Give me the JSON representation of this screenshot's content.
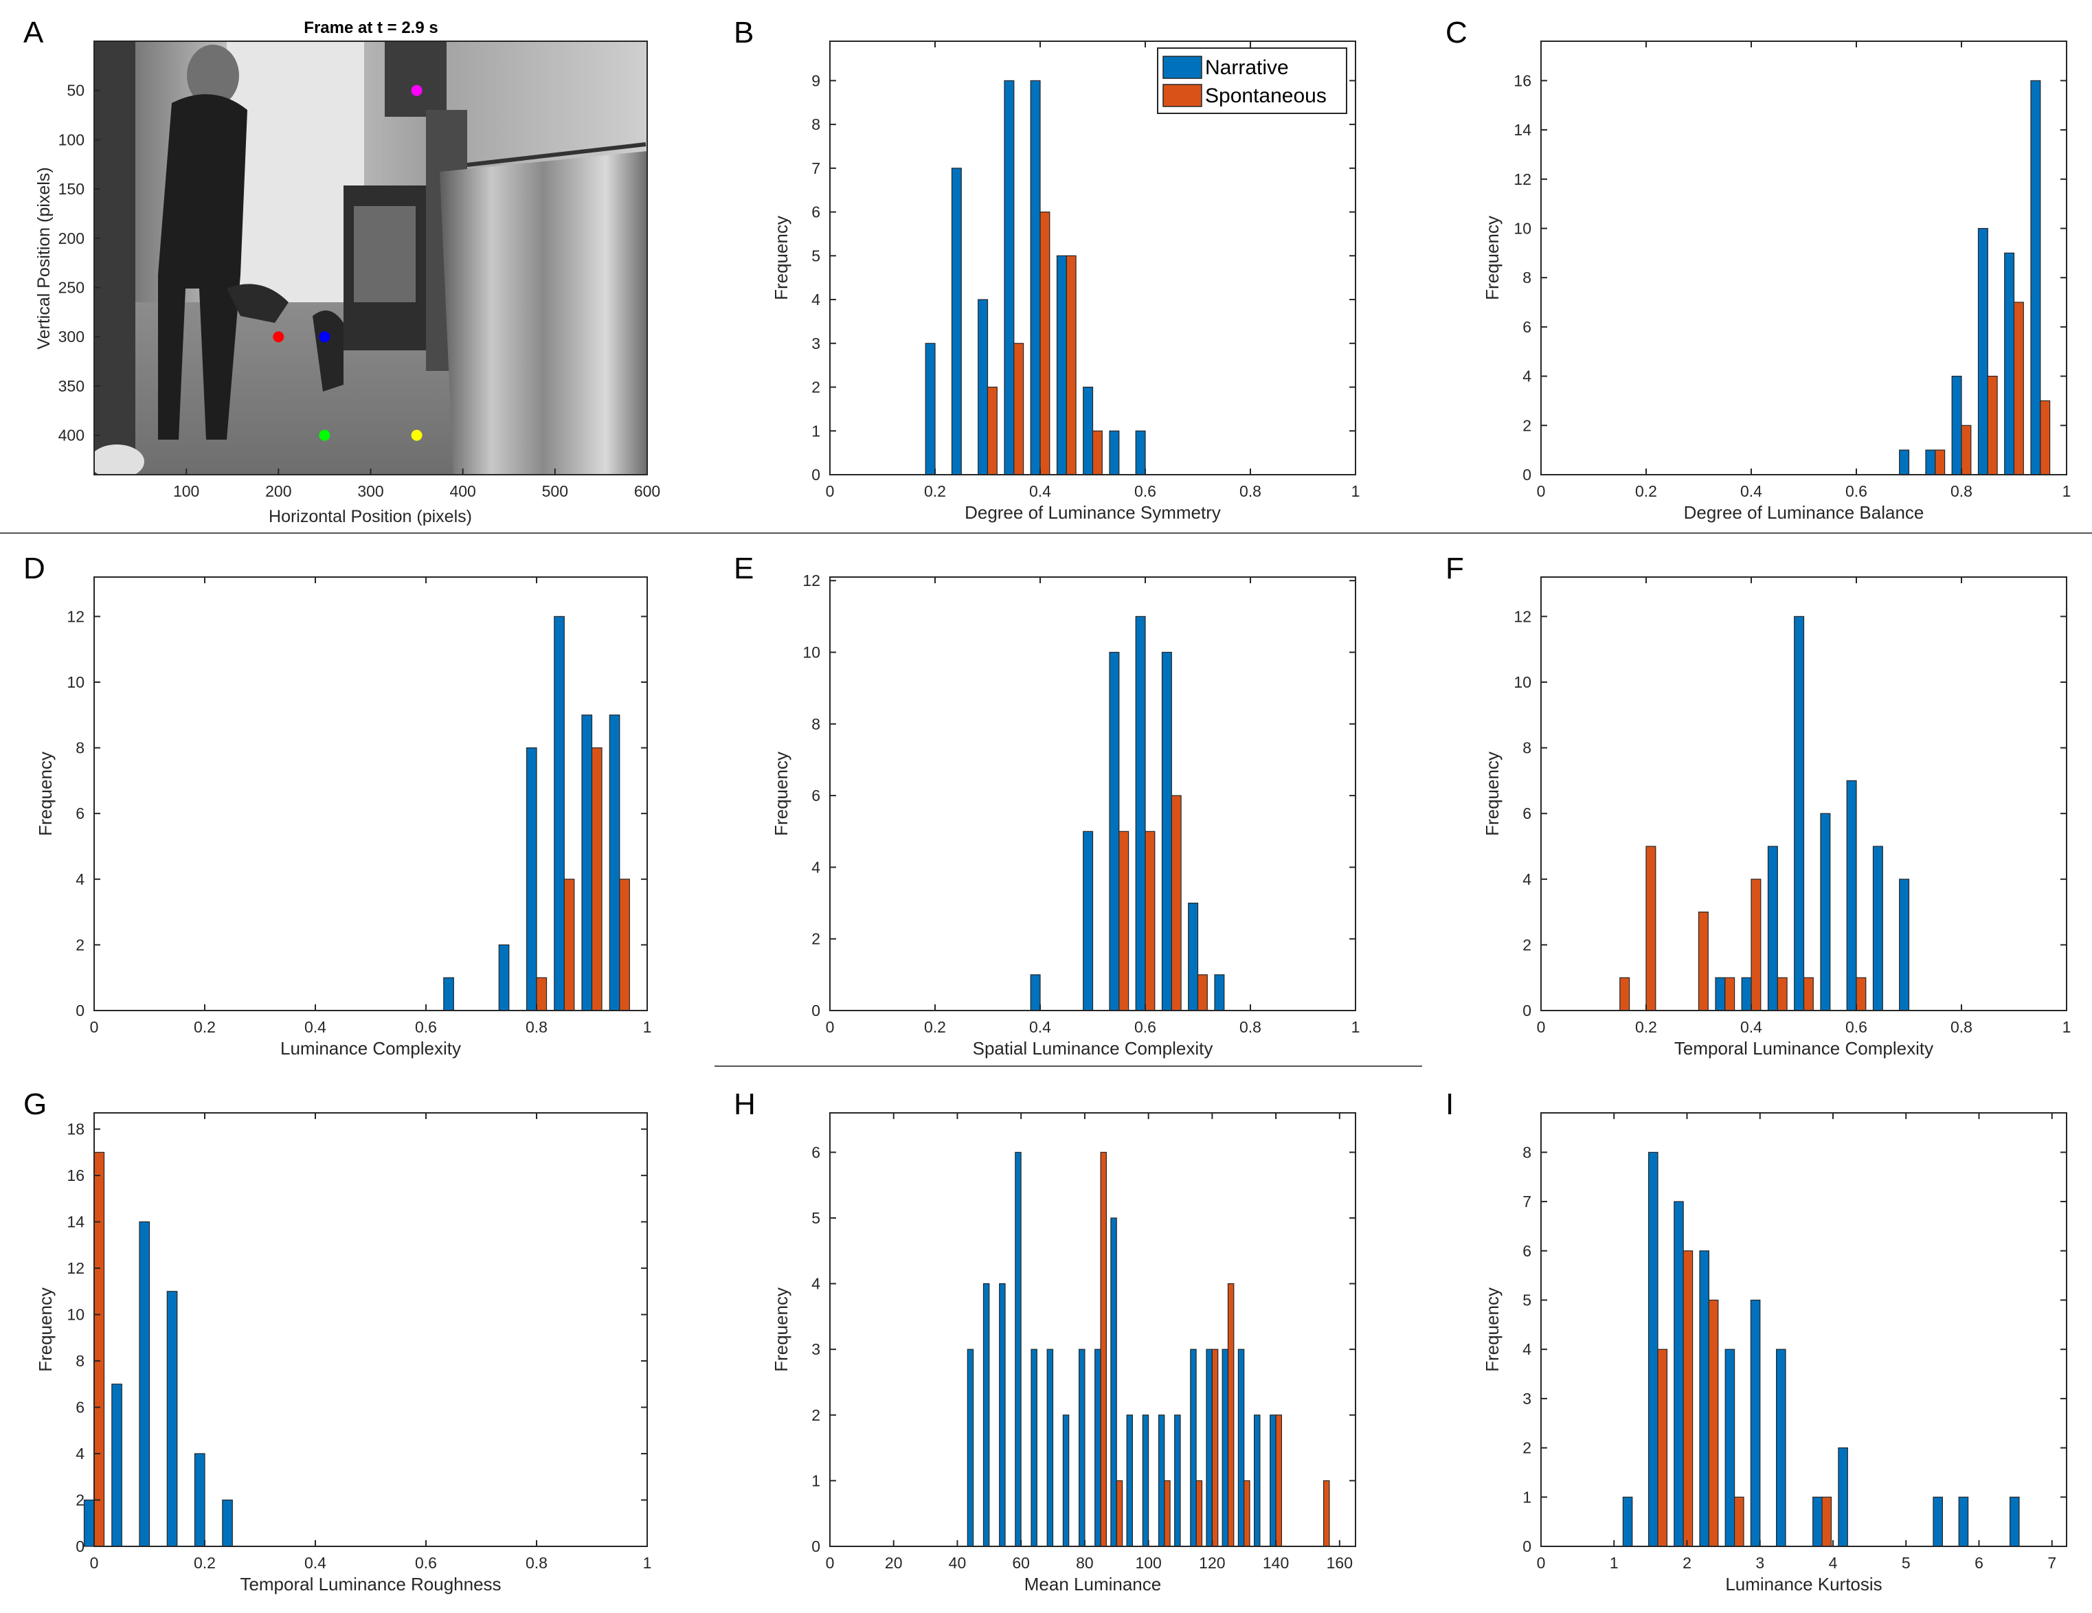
{
  "colors": {
    "narrative": "#0072BD",
    "spontaneous": "#D95319",
    "axis": "#262626"
  },
  "panels": [
    {
      "id": "A",
      "letter": "A"
    },
    {
      "id": "B",
      "letter": "B"
    },
    {
      "id": "C",
      "letter": "C"
    },
    {
      "id": "D",
      "letter": "D"
    },
    {
      "id": "E",
      "letter": "E"
    },
    {
      "id": "F",
      "letter": "F"
    },
    {
      "id": "G",
      "letter": "G"
    },
    {
      "id": "H",
      "letter": "H"
    },
    {
      "id": "I",
      "letter": "I"
    }
  ],
  "legend": {
    "series": [
      "Narrative",
      "Spontaneous"
    ]
  },
  "image_panel": {
    "title": "Frame at t = 2.9 s",
    "xlabel": "Horizontal Position (pixels)",
    "ylabel": "Vertical Position (pixels)",
    "xlim": [
      0,
      600
    ],
    "ylim": [
      0,
      440
    ],
    "xticks": [
      100,
      200,
      300,
      400,
      500,
      600
    ],
    "yticks": [
      50,
      100,
      150,
      200,
      250,
      300,
      350,
      400
    ],
    "markers": [
      {
        "name": "magenta",
        "color": "#ff00ff",
        "x": 350,
        "y": 50
      },
      {
        "name": "red",
        "color": "#ff0000",
        "x": 200,
        "y": 300
      },
      {
        "name": "blue",
        "color": "#0000ff",
        "x": 250,
        "y": 300
      },
      {
        "name": "green",
        "color": "#00ff00",
        "x": 250,
        "y": 400
      },
      {
        "name": "yellow",
        "color": "#ffff00",
        "x": 350,
        "y": 400
      }
    ]
  },
  "chart_data": [
    {
      "panel": "B",
      "type": "bar",
      "xlabel": "Degree of Luminance Symmetry",
      "ylabel": "Frequency",
      "xlim": [
        0,
        1
      ],
      "ylim": [
        0,
        9.9
      ],
      "xticks": [
        0,
        0.2,
        0.4,
        0.6,
        0.8,
        1
      ],
      "yticks": [
        0,
        1,
        2,
        3,
        4,
        5,
        6,
        7,
        8,
        9
      ],
      "bin_width": 0.05,
      "legend": true,
      "series": [
        {
          "name": "Narrative",
          "x": [
            0.2,
            0.25,
            0.3,
            0.35,
            0.4,
            0.45,
            0.5,
            0.55,
            0.6
          ],
          "values": [
            3,
            7,
            4,
            9,
            9,
            5,
            2,
            1,
            1
          ]
        },
        {
          "name": "Spontaneous",
          "x": [
            0.3,
            0.35,
            0.4,
            0.45,
            0.5
          ],
          "values": [
            2,
            3,
            6,
            5,
            1
          ]
        }
      ]
    },
    {
      "panel": "C",
      "type": "bar",
      "xlabel": "Degree of Luminance Balance",
      "ylabel": "Frequency",
      "xlim": [
        0,
        1
      ],
      "ylim": [
        0,
        17.6
      ],
      "xticks": [
        0,
        0.2,
        0.4,
        0.6,
        0.8,
        1
      ],
      "yticks": [
        0,
        2,
        4,
        6,
        8,
        10,
        12,
        14,
        16
      ],
      "bin_width": 0.05,
      "series": [
        {
          "name": "Narrative",
          "x": [
            0.7,
            0.75,
            0.8,
            0.85,
            0.9,
            0.95
          ],
          "values": [
            1,
            1,
            4,
            10,
            9,
            16
          ]
        },
        {
          "name": "Spontaneous",
          "x": [
            0.75,
            0.8,
            0.85,
            0.9,
            0.95
          ],
          "values": [
            1,
            2,
            4,
            7,
            3
          ]
        }
      ]
    },
    {
      "panel": "D",
      "type": "bar",
      "xlabel": "Luminance Complexity",
      "ylabel": "Frequency",
      "xlim": [
        0,
        1
      ],
      "ylim": [
        0,
        13.2
      ],
      "xticks": [
        0,
        0.2,
        0.4,
        0.6,
        0.8,
        1
      ],
      "yticks": [
        0,
        2,
        4,
        6,
        8,
        10,
        12
      ],
      "bin_width": 0.05,
      "series": [
        {
          "name": "Narrative",
          "x": [
            0.65,
            0.75,
            0.8,
            0.85,
            0.9,
            0.95
          ],
          "values": [
            1,
            2,
            8,
            12,
            9,
            9
          ]
        },
        {
          "name": "Spontaneous",
          "x": [
            0.8,
            0.85,
            0.9,
            0.95
          ],
          "values": [
            1,
            4,
            8,
            4
          ]
        }
      ]
    },
    {
      "panel": "E",
      "type": "bar",
      "xlabel": "Spatial Luminance Complexity",
      "ylabel": "Frequency",
      "xlim": [
        0,
        1
      ],
      "ylim": [
        0,
        12.1
      ],
      "xticks": [
        0,
        0.2,
        0.4,
        0.6,
        0.8,
        1
      ],
      "yticks": [
        0,
        2,
        4,
        6,
        8,
        10,
        12
      ],
      "bin_width": 0.05,
      "series": [
        {
          "name": "Narrative",
          "x": [
            0.4,
            0.5,
            0.55,
            0.6,
            0.65,
            0.7,
            0.75
          ],
          "values": [
            1,
            5,
            10,
            11,
            10,
            3,
            1
          ]
        },
        {
          "name": "Spontaneous",
          "x": [
            0.55,
            0.6,
            0.65,
            0.7
          ],
          "values": [
            5,
            5,
            6,
            1
          ]
        }
      ]
    },
    {
      "panel": "F",
      "type": "bar",
      "xlabel": "Temporal Luminance Complexity",
      "ylabel": "Frequency",
      "xlim": [
        0,
        1
      ],
      "ylim": [
        0,
        13.2
      ],
      "xticks": [
        0,
        0.2,
        0.4,
        0.6,
        0.8,
        1
      ],
      "yticks": [
        0,
        2,
        4,
        6,
        8,
        10,
        12
      ],
      "bin_width": 0.05,
      "series": [
        {
          "name": "Narrative",
          "x": [
            0.35,
            0.4,
            0.45,
            0.5,
            0.55,
            0.6,
            0.65,
            0.7
          ],
          "values": [
            1,
            1,
            5,
            12,
            6,
            7,
            5,
            4
          ]
        },
        {
          "name": "Spontaneous",
          "x": [
            0.15,
            0.2,
            0.3,
            0.35,
            0.4,
            0.45,
            0.5,
            0.6
          ],
          "values": [
            1,
            5,
            3,
            1,
            4,
            1,
            1,
            1
          ]
        }
      ]
    },
    {
      "panel": "G",
      "type": "bar",
      "xlabel": "Temporal Luminance Roughness",
      "ylabel": "Frequency",
      "xlim": [
        0,
        1
      ],
      "ylim": [
        0,
        18.7
      ],
      "xticks": [
        0,
        0.2,
        0.4,
        0.6,
        0.8,
        1
      ],
      "yticks": [
        0,
        2,
        4,
        6,
        8,
        10,
        12,
        14,
        16,
        18
      ],
      "bin_width": 0.05,
      "series": [
        {
          "name": "Narrative",
          "x": [
            0,
            0.05,
            0.1,
            0.15,
            0.2,
            0.25
          ],
          "values": [
            2,
            7,
            14,
            11,
            4,
            2
          ]
        },
        {
          "name": "Spontaneous",
          "x": [
            0
          ],
          "values": [
            17
          ]
        }
      ]
    },
    {
      "panel": "H",
      "type": "bar",
      "xlabel": "Mean Luminance",
      "ylabel": "Frequency",
      "xlim": [
        0,
        165
      ],
      "ylim": [
        0,
        6.6
      ],
      "xticks": [
        0,
        20,
        40,
        60,
        80,
        100,
        120,
        140,
        160
      ],
      "yticks": [
        0,
        1,
        2,
        3,
        4,
        5,
        6
      ],
      "bin_width": 5,
      "series": [
        {
          "name": "Narrative",
          "x": [
            45,
            50,
            55,
            60,
            65,
            70,
            75,
            80,
            85,
            90,
            95,
            100,
            105,
            110,
            115,
            120,
            125,
            130,
            135,
            140
          ],
          "values": [
            3,
            4,
            4,
            6,
            3,
            3,
            2,
            3,
            3,
            5,
            2,
            2,
            2,
            2,
            3,
            3,
            3,
            3,
            2,
            2
          ]
        },
        {
          "name": "Spontaneous",
          "x": [
            85,
            90,
            105,
            115,
            120,
            125,
            130,
            140,
            155
          ],
          "values": [
            6,
            1,
            1,
            1,
            3,
            4,
            1,
            2,
            1
          ]
        }
      ]
    },
    {
      "panel": "I",
      "type": "bar",
      "xlabel": "Luminance Kurtosis",
      "ylabel": "Frequency",
      "xlim": [
        0,
        7.2
      ],
      "ylim": [
        0,
        8.8
      ],
      "xticks": [
        0,
        1,
        2,
        3,
        4,
        5,
        6,
        7
      ],
      "yticks": [
        0,
        1,
        2,
        3,
        4,
        5,
        6,
        7,
        8
      ],
      "bin_width": 0.35,
      "series": [
        {
          "name": "Narrative",
          "x": [
            1.25,
            1.6,
            1.95,
            2.3,
            2.65,
            3.0,
            3.35,
            3.85,
            4.2,
            5.5,
            5.85,
            6.55
          ],
          "values": [
            1,
            8,
            7,
            6,
            4,
            5,
            4,
            1,
            2,
            1,
            1,
            1
          ]
        },
        {
          "name": "Spontaneous",
          "x": [
            1.6,
            1.95,
            2.3,
            2.65,
            3.85
          ],
          "values": [
            4,
            6,
            5,
            1,
            1
          ]
        }
      ]
    }
  ]
}
